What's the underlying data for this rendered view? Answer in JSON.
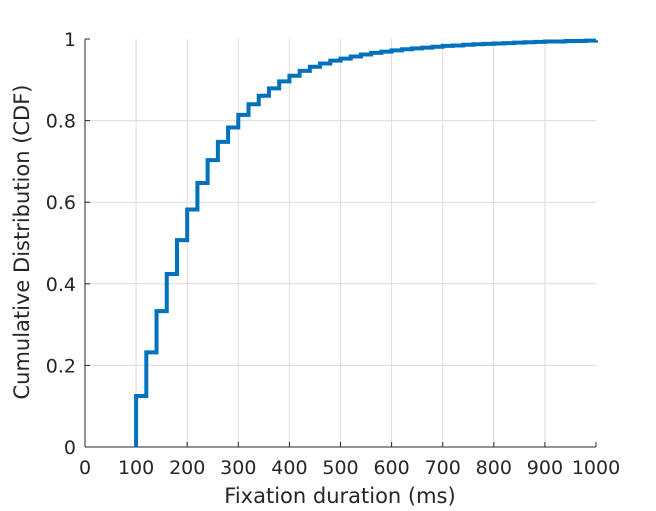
{
  "chart_data": {
    "type": "line",
    "title": "",
    "xlabel": "Fixation duration (ms)",
    "ylabel": "Cumulative Distribution (CDF)",
    "xlim": [
      0,
      1000
    ],
    "ylim": [
      0,
      1
    ],
    "grid": true,
    "line_color": "#0072BD",
    "xticks": [
      0,
      100,
      200,
      300,
      400,
      500,
      600,
      700,
      800,
      900,
      1000
    ],
    "yticks": [
      0,
      0.2,
      0.4,
      0.6,
      0.8,
      1
    ],
    "xtick_labels": [
      "0",
      "100",
      "200",
      "300",
      "400",
      "500",
      "600",
      "700",
      "800",
      "900",
      "1000"
    ],
    "ytick_labels": [
      "0",
      "0.2",
      "0.4",
      "0.6",
      "0.8",
      "1"
    ],
    "series": [
      {
        "step": true,
        "x": [
          100,
          120,
          140,
          160,
          180,
          200,
          220,
          240,
          260,
          280,
          300,
          320,
          340,
          360,
          380,
          400,
          420,
          440,
          460,
          480,
          500,
          520,
          540,
          560,
          580,
          600,
          620,
          640,
          660,
          680,
          700,
          720,
          740,
          760,
          780,
          800,
          820,
          840,
          860,
          880,
          900,
          920,
          940,
          960,
          980,
          1000
        ],
        "y": [
          0.125,
          0.232,
          0.333,
          0.424,
          0.507,
          0.582,
          0.647,
          0.703,
          0.748,
          0.783,
          0.814,
          0.84,
          0.861,
          0.879,
          0.896,
          0.91,
          0.922,
          0.932,
          0.94,
          0.947,
          0.952,
          0.957,
          0.962,
          0.966,
          0.969,
          0.972,
          0.975,
          0.977,
          0.979,
          0.981,
          0.983,
          0.984,
          0.986,
          0.987,
          0.988,
          0.989,
          0.99,
          0.991,
          0.992,
          0.993,
          0.994,
          0.994,
          0.995,
          0.995,
          0.996,
          0.997
        ]
      }
    ]
  }
}
